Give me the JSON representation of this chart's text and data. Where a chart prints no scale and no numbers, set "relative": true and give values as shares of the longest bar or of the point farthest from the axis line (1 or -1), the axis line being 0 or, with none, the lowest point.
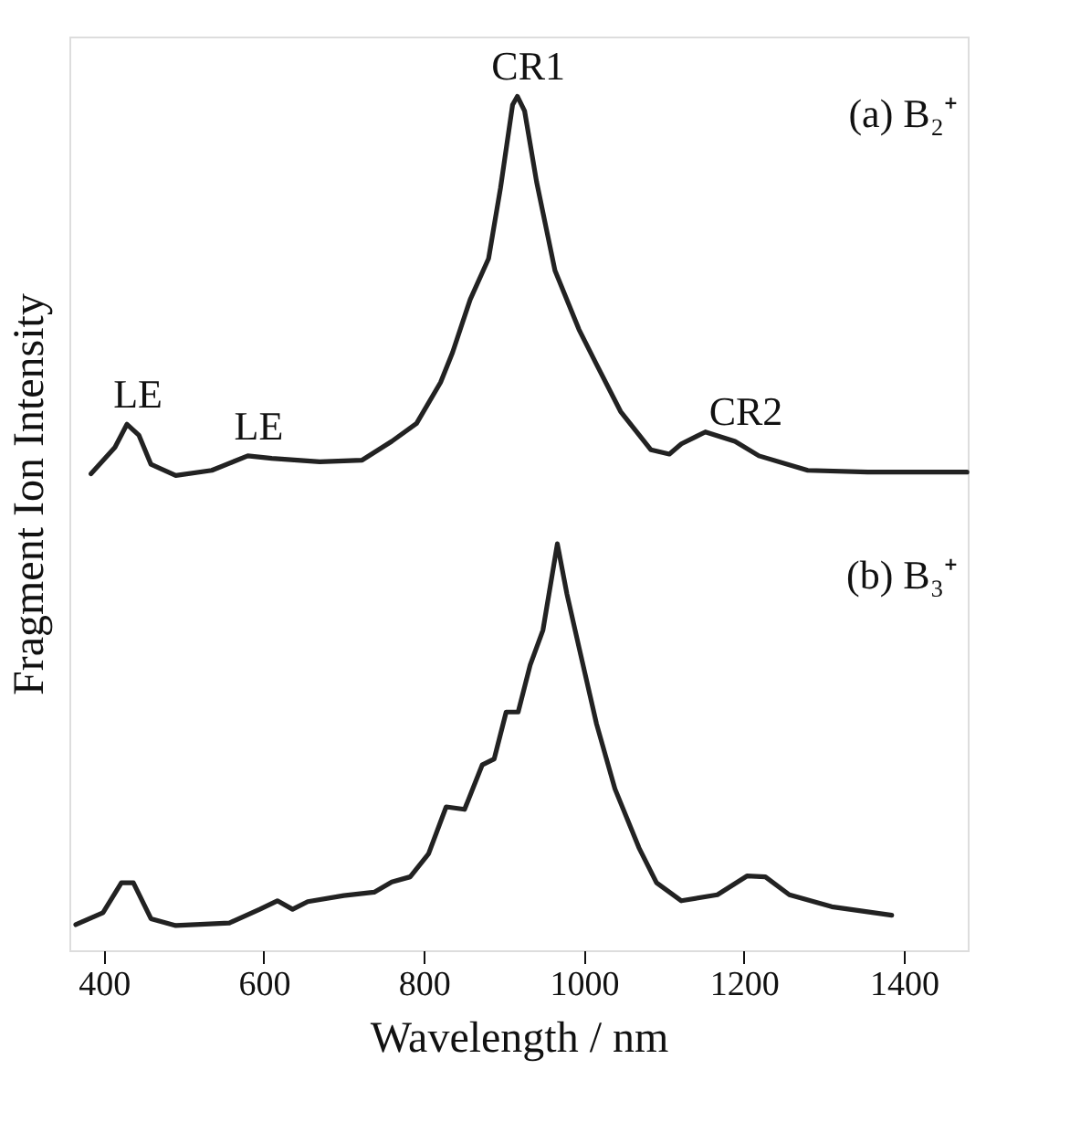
{
  "chart_data": {
    "type": "line",
    "relative": true,
    "xlabel": "Wavelength / nm",
    "ylabel": "Fragment Ion Intensity",
    "xlim": [
      357,
      1480
    ],
    "xticks": [
      400,
      600,
      800,
      1000,
      1200,
      1400
    ],
    "grid": false,
    "marker": "none",
    "line_style": "solid",
    "tick_labels": "x",
    "series": [
      {
        "color": "#222222",
        "x": [
          384,
          414,
          429,
          444,
          459,
          490,
          535,
          580,
          610,
          670,
          723,
          760,
          791,
          821,
          836,
          858,
          881,
          896,
          911,
          917,
          926,
          941,
          964,
          994,
          1016,
          1046,
          1084,
          1107,
          1122,
          1152,
          1189,
          1219,
          1280,
          1355,
          1479
        ],
        "values": [
          0.558,
          0.589,
          0.616,
          0.603,
          0.569,
          0.556,
          0.562,
          0.579,
          0.576,
          0.572,
          0.574,
          0.596,
          0.617,
          0.665,
          0.7,
          0.762,
          0.81,
          0.893,
          0.99,
          1,
          0.983,
          0.9,
          0.796,
          0.727,
          0.686,
          0.631,
          0.586,
          0.581,
          0.593,
          0.607,
          0.596,
          0.579,
          0.562,
          0.56,
          0.56
        ]
      },
      {
        "color": "#222222",
        "x": [
          365,
          399,
          422,
          437,
          459,
          490,
          557,
          595,
          617,
          636,
          655,
          700,
          738,
          760,
          783,
          806,
          828,
          851,
          873,
          888,
          903,
          918,
          933,
          949,
          967,
          979,
          994,
          1016,
          1039,
          1069,
          1091,
          1122,
          1167,
          1204,
          1227,
          1257,
          1310,
          1385
        ],
        "values": [
          0.03,
          0.044,
          0.079,
          0.079,
          0.037,
          0.029,
          0.032,
          0.048,
          0.058,
          0.048,
          0.057,
          0.064,
          0.068,
          0.08,
          0.086,
          0.113,
          0.168,
          0.165,
          0.217,
          0.224,
          0.279,
          0.279,
          0.334,
          0.375,
          0.476,
          0.417,
          0.355,
          0.265,
          0.189,
          0.12,
          0.079,
          0.058,
          0.065,
          0.087,
          0.086,
          0.065,
          0.051,
          0.041
        ]
      }
    ],
    "annotations": [
      {
        "text": "CR1",
        "x": 917,
        "y": 1
      },
      {
        "text": "LE",
        "x": 429,
        "y": 0.616
      },
      {
        "text": "LE",
        "x": 580,
        "y": 0.579
      },
      {
        "text": "CR2",
        "x": 1189,
        "y": 0.596
      },
      "(a) B₂⁺",
      "(b) B₃⁺"
    ]
  }
}
